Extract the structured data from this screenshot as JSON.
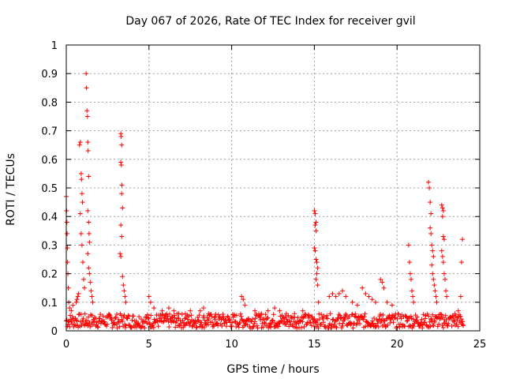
{
  "chart_data": {
    "type": "scatter",
    "title": "Day 067 of 2026, Rate Of TEC Index for receiver gvil",
    "xlabel": "GPS time / hours",
    "ylabel": "ROTI / TECUs",
    "xlim": [
      0,
      25
    ],
    "ylim": [
      0,
      1
    ],
    "xticks": [
      0,
      5,
      10,
      15,
      20,
      25
    ],
    "xtick_labels": [
      "0",
      "5",
      "10",
      "15",
      "20",
      "25"
    ],
    "yticks": [
      0,
      0.1,
      0.2,
      0.3,
      0.4,
      0.5,
      0.6,
      0.7,
      0.8,
      0.9,
      1
    ],
    "ytick_labels": [
      "0",
      "0.1",
      "0.2",
      "0.3",
      "0.4",
      "0.5",
      "0.6",
      "0.7",
      "0.8",
      "0.9",
      "1"
    ],
    "grid": true,
    "marker": "plus",
    "series": [
      {
        "name": "ROTI",
        "color": "#ff0000",
        "points": [
          [
            0.0,
            0.47
          ],
          [
            0.02,
            0.42
          ],
          [
            0.04,
            0.38
          ],
          [
            0.05,
            0.34
          ],
          [
            0.07,
            0.29
          ],
          [
            0.08,
            0.24
          ],
          [
            0.1,
            0.2
          ],
          [
            0.12,
            0.15
          ],
          [
            0.15,
            0.1
          ],
          [
            0.2,
            0.08
          ],
          [
            0.3,
            0.07
          ],
          [
            0.4,
            0.09
          ],
          [
            0.6,
            0.1
          ],
          [
            0.65,
            0.11
          ],
          [
            0.7,
            0.12
          ],
          [
            0.75,
            0.13
          ],
          [
            0.8,
            0.65
          ],
          [
            0.85,
            0.66
          ],
          [
            0.9,
            0.55
          ],
          [
            0.92,
            0.53
          ],
          [
            0.95,
            0.48
          ],
          [
            0.98,
            0.45
          ],
          [
            0.85,
            0.41
          ],
          [
            0.9,
            0.34
          ],
          [
            0.95,
            0.3
          ],
          [
            1.0,
            0.24
          ],
          [
            1.05,
            0.18
          ],
          [
            1.1,
            0.15
          ],
          [
            1.2,
            0.9
          ],
          [
            1.22,
            0.85
          ],
          [
            1.25,
            0.77
          ],
          [
            1.28,
            0.75
          ],
          [
            1.3,
            0.66
          ],
          [
            1.32,
            0.63
          ],
          [
            1.35,
            0.54
          ],
          [
            1.3,
            0.42
          ],
          [
            1.35,
            0.38
          ],
          [
            1.38,
            0.34
          ],
          [
            1.4,
            0.31
          ],
          [
            1.3,
            0.27
          ],
          [
            1.35,
            0.22
          ],
          [
            1.4,
            0.2
          ],
          [
            1.45,
            0.17
          ],
          [
            1.5,
            0.14
          ],
          [
            1.55,
            0.12
          ],
          [
            1.6,
            0.1
          ],
          [
            3.3,
            0.69
          ],
          [
            3.32,
            0.68
          ],
          [
            3.35,
            0.65
          ],
          [
            3.3,
            0.59
          ],
          [
            3.33,
            0.58
          ],
          [
            3.36,
            0.51
          ],
          [
            3.35,
            0.48
          ],
          [
            3.4,
            0.43
          ],
          [
            3.3,
            0.37
          ],
          [
            3.35,
            0.33
          ],
          [
            3.25,
            0.27
          ],
          [
            3.3,
            0.26
          ],
          [
            3.4,
            0.19
          ],
          [
            3.45,
            0.16
          ],
          [
            3.5,
            0.14
          ],
          [
            3.55,
            0.12
          ],
          [
            3.6,
            0.1
          ],
          [
            5.0,
            0.12
          ],
          [
            5.1,
            0.1
          ],
          [
            5.3,
            0.08
          ],
          [
            5.8,
            0.07
          ],
          [
            6.2,
            0.08
          ],
          [
            6.5,
            0.07
          ],
          [
            6.8,
            0.06
          ],
          [
            7.2,
            0.06
          ],
          [
            7.5,
            0.07
          ],
          [
            8.1,
            0.07
          ],
          [
            8.3,
            0.08
          ],
          [
            8.6,
            0.06
          ],
          [
            9.0,
            0.05
          ],
          [
            9.5,
            0.05
          ],
          [
            10.6,
            0.12
          ],
          [
            10.7,
            0.11
          ],
          [
            10.8,
            0.09
          ],
          [
            11.4,
            0.07
          ],
          [
            11.8,
            0.06
          ],
          [
            12.2,
            0.07
          ],
          [
            12.6,
            0.08
          ],
          [
            12.9,
            0.07
          ],
          [
            13.3,
            0.06
          ],
          [
            13.8,
            0.06
          ],
          [
            14.3,
            0.07
          ],
          [
            15.0,
            0.42
          ],
          [
            15.05,
            0.41
          ],
          [
            15.1,
            0.38
          ],
          [
            15.05,
            0.37
          ],
          [
            15.1,
            0.35
          ],
          [
            15.0,
            0.29
          ],
          [
            15.05,
            0.28
          ],
          [
            15.1,
            0.25
          ],
          [
            15.15,
            0.24
          ],
          [
            15.2,
            0.22
          ],
          [
            15.15,
            0.2
          ],
          [
            15.1,
            0.18
          ],
          [
            15.2,
            0.16
          ],
          [
            15.25,
            0.1
          ],
          [
            15.9,
            0.12
          ],
          [
            16.1,
            0.13
          ],
          [
            16.3,
            0.12
          ],
          [
            16.5,
            0.13
          ],
          [
            16.7,
            0.14
          ],
          [
            16.9,
            0.12
          ],
          [
            17.3,
            0.1
          ],
          [
            17.6,
            0.09
          ],
          [
            17.9,
            0.15
          ],
          [
            18.1,
            0.13
          ],
          [
            18.3,
            0.12
          ],
          [
            18.5,
            0.11
          ],
          [
            18.7,
            0.1
          ],
          [
            19.0,
            0.18
          ],
          [
            19.1,
            0.17
          ],
          [
            19.2,
            0.15
          ],
          [
            19.4,
            0.1
          ],
          [
            19.7,
            0.09
          ],
          [
            20.7,
            0.3
          ],
          [
            20.75,
            0.24
          ],
          [
            20.8,
            0.2
          ],
          [
            20.85,
            0.18
          ],
          [
            20.9,
            0.14
          ],
          [
            20.95,
            0.12
          ],
          [
            21.0,
            0.1
          ],
          [
            21.9,
            0.52
          ],
          [
            21.95,
            0.5
          ],
          [
            22.0,
            0.45
          ],
          [
            22.05,
            0.41
          ],
          [
            22.0,
            0.36
          ],
          [
            22.05,
            0.34
          ],
          [
            22.1,
            0.3
          ],
          [
            22.15,
            0.28
          ],
          [
            22.2,
            0.26
          ],
          [
            22.1,
            0.23
          ],
          [
            22.15,
            0.2
          ],
          [
            22.2,
            0.18
          ],
          [
            22.25,
            0.16
          ],
          [
            22.3,
            0.14
          ],
          [
            22.35,
            0.12
          ],
          [
            22.4,
            0.1
          ],
          [
            22.7,
            0.44
          ],
          [
            22.75,
            0.43
          ],
          [
            22.8,
            0.42
          ],
          [
            22.75,
            0.4
          ],
          [
            22.8,
            0.33
          ],
          [
            22.85,
            0.32
          ],
          [
            22.7,
            0.28
          ],
          [
            22.75,
            0.26
          ],
          [
            22.8,
            0.24
          ],
          [
            22.85,
            0.2
          ],
          [
            22.9,
            0.18
          ],
          [
            22.95,
            0.14
          ],
          [
            23.0,
            0.12
          ],
          [
            23.5,
            0.06
          ],
          [
            23.7,
            0.07
          ],
          [
            23.85,
            0.12
          ],
          [
            23.9,
            0.24
          ],
          [
            23.95,
            0.32
          ],
          [
            24.0,
            0.02
          ]
        ],
        "baseline": {
          "x_range": [
            0,
            24
          ],
          "y_min": 0.01,
          "y_max": 0.06
        }
      }
    ]
  }
}
